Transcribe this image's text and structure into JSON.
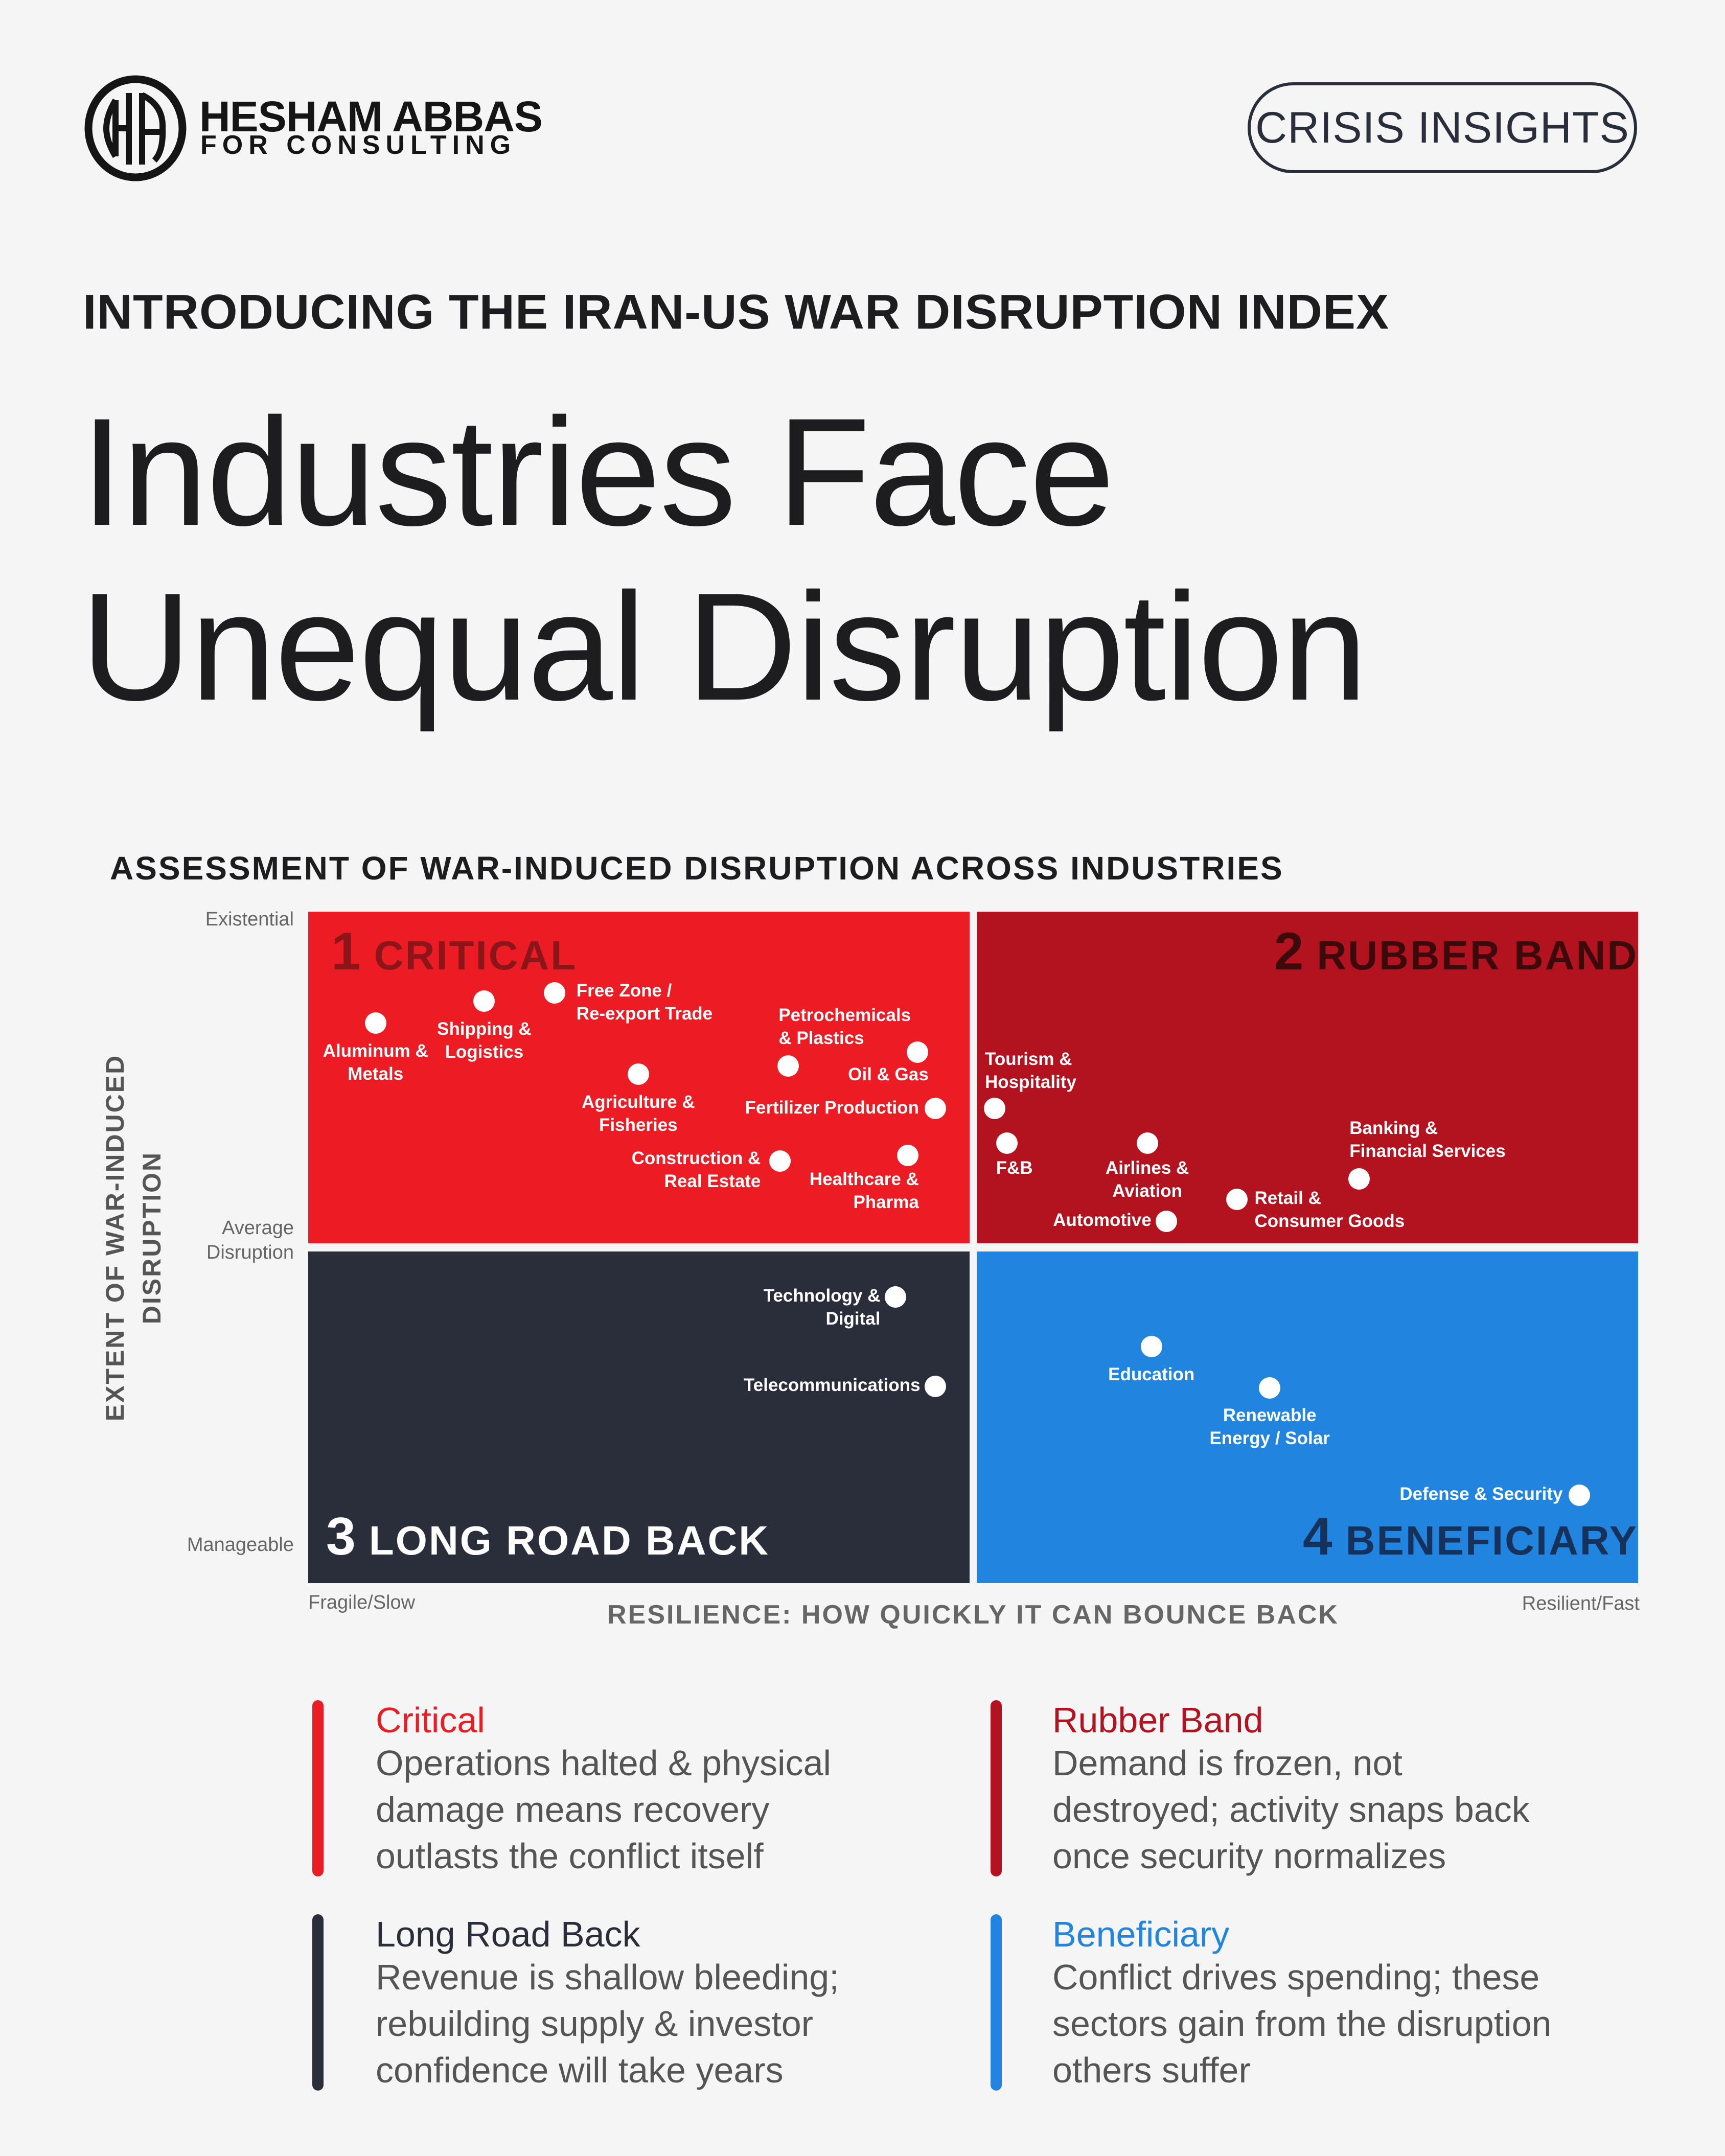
{
  "brand": {
    "name": "HESHAM ABBAS",
    "tagline": "FOR CONSULTING",
    "monogram": "HA"
  },
  "badge": "CRISIS INSIGHTS",
  "subtitle": "INTRODUCING THE IRAN-US WAR DISRUPTION INDEX",
  "title": {
    "line1": "Industries Face",
    "line2": "Unequal Disruption"
  },
  "colors": {
    "background": "#f5f5f5",
    "critical": "#ec1c24",
    "rubber_band": "#b3121f",
    "long_road_back": "#2a2e3a",
    "beneficiary": "#2185e0"
  },
  "chart_data": {
    "type": "scatter",
    "title": "ASSESSMENT OF WAR-INDUCED DISRUPTION ACROSS INDUSTRIES",
    "xlabel": "RESILIENCE: HOW QUICKLY IT CAN BOUNCE BACK",
    "ylabel": "EXTENT OF WAR-INDUCED\nDISRUPTION",
    "x_ticks": {
      "left": "Fragile/Slow",
      "right": "Resilient/Fast"
    },
    "y_ticks": {
      "top": "Existential",
      "middle": "Average\nDisruption",
      "bottom": "Manageable"
    },
    "grid": false,
    "quadrants": [
      {
        "number": "1",
        "name": "CRITICAL"
      },
      {
        "number": "2",
        "name": "RUBBER BAND"
      },
      {
        "number": "3",
        "name": "LONG ROAD BACK"
      },
      {
        "number": "4",
        "name": "BENEFICIARY"
      }
    ],
    "points": [
      {
        "label": "Aluminum &\nMetals",
        "quadrant": "1"
      },
      {
        "label": "Shipping &\nLogistics",
        "quadrant": "1"
      },
      {
        "label": "Free Zone /\nRe-export Trade",
        "quadrant": "1"
      },
      {
        "label": "Petrochemicals\n& Plastics",
        "quadrant": "1"
      },
      {
        "label": "Oil & Gas",
        "quadrant": "1"
      },
      {
        "label": "Agriculture &\nFisheries",
        "quadrant": "1"
      },
      {
        "label": "Fertilizer Production",
        "quadrant": "1"
      },
      {
        "label": "Construction &\nReal Estate",
        "quadrant": "1"
      },
      {
        "label": "Healthcare &\nPharma",
        "quadrant": "1"
      },
      {
        "label": "Tourism &\nHospitality",
        "quadrant": "2"
      },
      {
        "label": "F&B",
        "quadrant": "2"
      },
      {
        "label": "Airlines &\nAviation",
        "quadrant": "2"
      },
      {
        "label": "Automotive",
        "quadrant": "2"
      },
      {
        "label": "Retail &\nConsumer Goods",
        "quadrant": "2"
      },
      {
        "label": "Banking &\nFinancial Services",
        "quadrant": "2"
      },
      {
        "label": "Technology &\nDigital",
        "quadrant": "3"
      },
      {
        "label": "Telecommunications",
        "quadrant": "3"
      },
      {
        "label": "Education",
        "quadrant": "4"
      },
      {
        "label": "Renewable\nEnergy / Solar",
        "quadrant": "4"
      },
      {
        "label": "Defense & Security",
        "quadrant": "4"
      }
    ]
  },
  "legend": [
    {
      "title": "Critical",
      "body": "Operations halted & physical\ndamage means recovery\noutlasts the conflict itself",
      "color": "#ec1c24"
    },
    {
      "title": "Rubber Band",
      "body": "Demand is frozen, not\ndestroyed; activity snaps back\nonce security normalizes",
      "color": "#b3121f"
    },
    {
      "title": "Long Road Back",
      "body": "Revenue is shallow bleeding;\nrebuilding supply & investor\nconfidence will take years",
      "color": "#2a2e3a"
    },
    {
      "title": "Beneficiary",
      "body": "Conflict drives spending; these\nsectors gain from the disruption\nothers suffer",
      "color": "#2185e0"
    }
  ]
}
